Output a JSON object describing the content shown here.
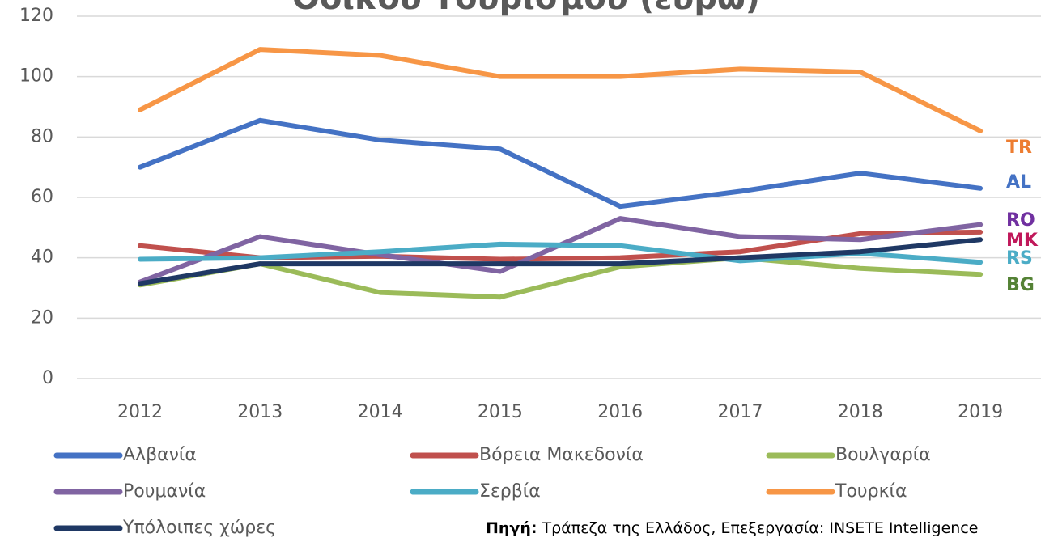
{
  "chart_data": {
    "type": "line",
    "title": "Οδικού Τουρισμού (ευρώ)",
    "categories": [
      "2012",
      "2013",
      "2014",
      "2015",
      "2016",
      "2017",
      "2018",
      "2019"
    ],
    "series": [
      {
        "name": "Αλβανία",
        "color": "#4472c4",
        "values": [
          70,
          85.5,
          79,
          76,
          57,
          62,
          68,
          63
        ]
      },
      {
        "name": "Βόρεια Μακεδονία",
        "color": "#c0504d",
        "values": [
          44,
          40,
          40.5,
          39.5,
          40,
          42,
          48,
          48.5
        ]
      },
      {
        "name": "Βουλγαρία",
        "color": "#9bbb59",
        "values": [
          31,
          38,
          28.5,
          27,
          37,
          40,
          36.5,
          34.5
        ]
      },
      {
        "name": "Ρουμανία",
        "color": "#8064a2",
        "values": [
          32,
          47,
          41,
          35.5,
          53,
          47,
          46,
          51
        ]
      },
      {
        "name": "Σερβία",
        "color": "#4bacc6",
        "values": [
          39.5,
          40,
          42,
          44.5,
          44,
          39,
          41.5,
          38.5
        ]
      },
      {
        "name": "Τουρκία",
        "color": "#f79646",
        "values": [
          89,
          109,
          107,
          100,
          100,
          102.5,
          101.5,
          82
        ]
      },
      {
        "name": "Υπόλοιπες χώρες",
        "color": "#1f3864",
        "values": [
          31.5,
          38,
          38,
          38,
          38,
          40,
          42,
          46
        ]
      }
    ],
    "ylim": [
      0,
      120
    ],
    "yticks": [
      0,
      20,
      40,
      60,
      80,
      100,
      120
    ],
    "grid": true,
    "annotations": [
      {
        "text": "TR",
        "color": "#ed7d31"
      },
      {
        "text": "AL",
        "color": "#4472c4"
      },
      {
        "text": "RO",
        "color": "#7030a0"
      },
      {
        "text": "MK",
        "color": "#c0185a"
      },
      {
        "text": "RS",
        "color": "#4bacc6"
      },
      {
        "text": "BG",
        "color": "#548235"
      }
    ],
    "source_label": "Πηγή:",
    "source": "Τράπεζα της Ελλάδος, Επεξεργασία: INSETE Intelligence"
  }
}
